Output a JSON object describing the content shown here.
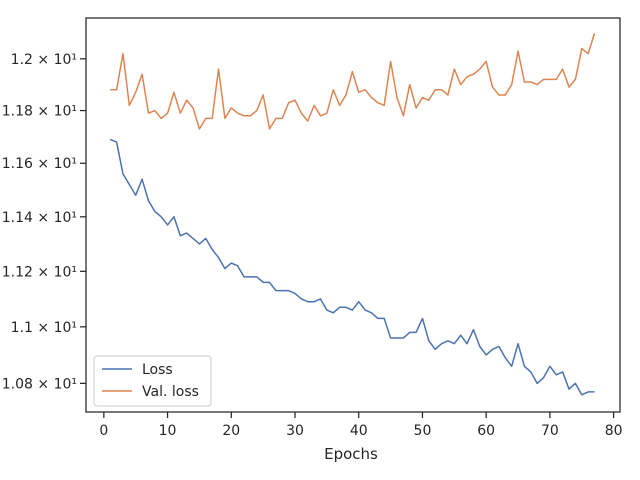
{
  "chart_data": {
    "type": "line",
    "title": "",
    "xlabel": "Epochs",
    "ylabel": "",
    "y_scale": "log",
    "xlim": [
      -2.8,
      81.0
    ],
    "ylim": [
      10.7,
      12.16
    ],
    "x_ticks": [
      0,
      10,
      20,
      30,
      40,
      50,
      60,
      70,
      80
    ],
    "x_tick_labels": [
      "0",
      "10",
      "20",
      "30",
      "40",
      "50",
      "60",
      "70",
      "80"
    ],
    "y_ticks": [
      10.8,
      11.0,
      11.2,
      11.4,
      11.6,
      11.8,
      12.0
    ],
    "y_tick_labels": [
      "1.08 × 10¹",
      "1.1 × 10¹",
      "1.12 × 10¹",
      "1.14 × 10¹",
      "1.16 × 10¹",
      "1.18 × 10¹",
      "1.2 × 10¹"
    ],
    "grid": false,
    "legend_position": "lower-left",
    "x": [
      1,
      2,
      3,
      4,
      5,
      6,
      7,
      8,
      9,
      10,
      11,
      12,
      13,
      14,
      15,
      16,
      17,
      18,
      19,
      20,
      21,
      22,
      23,
      24,
      25,
      26,
      27,
      28,
      29,
      30,
      31,
      32,
      33,
      34,
      35,
      36,
      37,
      38,
      39,
      40,
      41,
      42,
      43,
      44,
      45,
      46,
      47,
      48,
      49,
      50,
      51,
      52,
      53,
      54,
      55,
      56,
      57,
      58,
      59,
      60,
      61,
      62,
      63,
      64,
      65,
      66,
      67,
      68,
      69,
      70,
      71,
      72,
      73,
      74,
      75,
      76,
      77
    ],
    "series": [
      {
        "name": "Loss",
        "color": "#4c72b0",
        "values": [
          11.69,
          11.68,
          11.56,
          11.52,
          11.48,
          11.54,
          11.46,
          11.42,
          11.4,
          11.37,
          11.4,
          11.33,
          11.34,
          11.32,
          11.3,
          11.32,
          11.28,
          11.25,
          11.21,
          11.23,
          11.22,
          11.18,
          11.18,
          11.18,
          11.16,
          11.16,
          11.13,
          11.13,
          11.13,
          11.12,
          11.1,
          11.09,
          11.09,
          11.1,
          11.06,
          11.05,
          11.07,
          11.07,
          11.06,
          11.09,
          11.06,
          11.05,
          11.03,
          11.03,
          10.96,
          10.96,
          10.96,
          10.98,
          10.98,
          11.03,
          10.95,
          10.92,
          10.94,
          10.95,
          10.94,
          10.97,
          10.94,
          10.99,
          10.93,
          10.9,
          10.92,
          10.93,
          10.89,
          10.86,
          10.94,
          10.86,
          10.84,
          10.8,
          10.82,
          10.86,
          10.83,
          10.84,
          10.78,
          10.8,
          10.76,
          10.77,
          10.77
        ]
      },
      {
        "name": "Val. loss",
        "color": "#dd8452",
        "values": [
          11.88,
          11.88,
          12.02,
          11.82,
          11.87,
          11.94,
          11.79,
          11.8,
          11.77,
          11.79,
          11.87,
          11.79,
          11.84,
          11.81,
          11.73,
          11.77,
          11.77,
          11.96,
          11.77,
          11.81,
          11.79,
          11.78,
          11.78,
          11.8,
          11.86,
          11.73,
          11.77,
          11.77,
          11.83,
          11.84,
          11.79,
          11.76,
          11.82,
          11.78,
          11.79,
          11.88,
          11.82,
          11.86,
          11.95,
          11.87,
          11.88,
          11.85,
          11.83,
          11.82,
          11.99,
          11.85,
          11.78,
          11.9,
          11.81,
          11.85,
          11.84,
          11.88,
          11.88,
          11.86,
          11.96,
          11.9,
          11.93,
          11.94,
          11.96,
          11.99,
          11.89,
          11.86,
          11.86,
          11.9,
          12.03,
          11.91,
          11.91,
          11.9,
          11.92,
          11.92,
          11.92,
          11.96,
          11.89,
          11.92,
          12.04,
          12.02,
          12.1
        ]
      }
    ]
  }
}
